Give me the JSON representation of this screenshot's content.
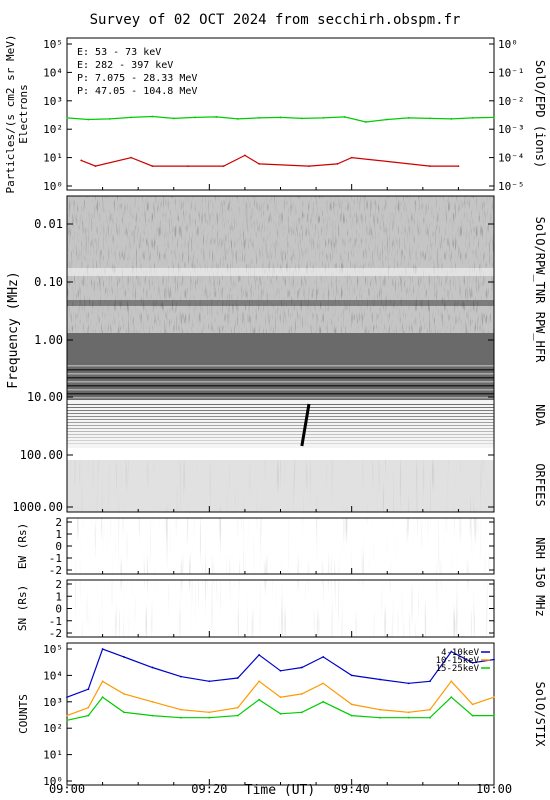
{
  "title": "Survey of 02 OCT 2024 from secchirh.obspm.fr",
  "colors": {
    "green": "#00cc00",
    "red": "#cc0000",
    "black": "#000000",
    "blue": "#0000cc",
    "orange": "#ff9900"
  },
  "epd": {
    "ylabel": "Particles/(s cm2 sr MeV)",
    "ylabel2": "Electrons",
    "rlabel": "SolO/EPD (ions)",
    "legend": [
      {
        "text": "E: 53 - 73 keV",
        "color": "#00cc00"
      },
      {
        "text": "E: 282 - 397 keV",
        "color": "#cc0000"
      },
      {
        "text": "P: 7.075 - 28.33 MeV",
        "color": "#000000"
      },
      {
        "text": "P: 47.05 - 104.8 MeV",
        "color": "#0000cc"
      }
    ],
    "yticks_left": [
      "10⁵",
      "10⁴",
      "10³",
      "10²",
      "10¹",
      "10⁰"
    ],
    "yticks_right": [
      "10⁰",
      "10⁻¹",
      "10⁻²",
      "10⁻³",
      "10⁻⁴",
      "10⁻⁵"
    ]
  },
  "freq": {
    "ylabel": "Frequency (MHz)",
    "yticks": [
      "0.01",
      "0.10",
      "1.00",
      "10.00",
      "100.00",
      "1000.00"
    ],
    "rlabels": [
      "SolO/RPW_TNR",
      "RPW_HFR",
      "NDA",
      "ORFEES"
    ]
  },
  "nrh": {
    "ew_label": "EW (Rs)",
    "sn_label": "SN (Rs)",
    "rlabel": "NRH 150 MHz",
    "yticks": [
      "2",
      "1",
      "0",
      "-1",
      "-2"
    ]
  },
  "stix": {
    "ylabel": "COUNTS",
    "rlabel": "SolO/STIX",
    "yticks": [
      "10⁵",
      "10⁴",
      "10³",
      "10²",
      "10¹",
      "10⁰"
    ],
    "legend": [
      {
        "text": "4-10keV",
        "color": "#0000cc"
      },
      {
        "text": "10-15keV",
        "color": "#ff9900"
      },
      {
        "text": "15-25keV",
        "color": "#00cc00"
      }
    ]
  },
  "xaxis": {
    "label": "Time (UT)",
    "ticks": [
      "09:00",
      "09:20",
      "09:40",
      "10:00"
    ]
  },
  "chart_data": [
    {
      "type": "line",
      "title": "Survey of 02 OCT 2024 from secchirh.obspm.fr",
      "ylabel": "Particles/(s cm2 sr MeV)",
      "yscale": "log",
      "ylim": [
        1,
        100000
      ],
      "xlim": [
        "09:00",
        "10:00"
      ],
      "series": [
        {
          "name": "E: 53 - 73 keV",
          "x": [
            "09:00",
            "09:03",
            "09:06",
            "09:09",
            "09:12",
            "09:15",
            "09:18",
            "09:21",
            "09:24",
            "09:27",
            "09:30",
            "09:33",
            "09:36",
            "09:39",
            "09:42",
            "09:45",
            "09:48",
            "09:51",
            "09:54",
            "09:57",
            "10:00"
          ],
          "values": [
            250,
            220,
            230,
            260,
            280,
            240,
            260,
            270,
            230,
            250,
            260,
            240,
            250,
            270,
            180,
            220,
            250,
            240,
            230,
            250,
            260
          ]
        },
        {
          "name": "E: 282 - 397 keV",
          "x": [
            "09:02",
            "09:04",
            "09:09",
            "09:12",
            "09:17",
            "09:22",
            "09:25",
            "09:27",
            "09:34",
            "09:38",
            "09:40",
            "09:51",
            "09:55"
          ],
          "values": [
            8,
            5,
            10,
            5,
            5,
            5,
            12,
            6,
            5,
            6,
            10,
            5,
            5
          ]
        }
      ]
    },
    {
      "type": "line",
      "ylabel": "COUNTS",
      "yscale": "log",
      "ylim": [
        1,
        100000
      ],
      "xlim": [
        "09:00",
        "10:00"
      ],
      "series": [
        {
          "name": "4-10keV",
          "x": [
            "09:00",
            "09:03",
            "09:05",
            "09:08",
            "09:12",
            "09:16",
            "09:20",
            "09:24",
            "09:27",
            "09:30",
            "09:33",
            "09:36",
            "09:40",
            "09:44",
            "09:48",
            "09:51",
            "09:54",
            "09:57",
            "10:00"
          ],
          "values": [
            1500,
            3000,
            100000,
            50000,
            20000,
            9000,
            6000,
            8000,
            60000,
            15000,
            20000,
            50000,
            10000,
            7000,
            5000,
            6000,
            80000,
            30000,
            40000
          ]
        },
        {
          "name": "10-15keV",
          "x": [
            "09:00",
            "09:03",
            "09:05",
            "09:08",
            "09:12",
            "09:16",
            "09:20",
            "09:24",
            "09:27",
            "09:30",
            "09:33",
            "09:36",
            "09:40",
            "09:44",
            "09:48",
            "09:51",
            "09:54",
            "09:57",
            "10:00"
          ],
          "values": [
            300,
            600,
            6000,
            2000,
            1000,
            500,
            400,
            600,
            6000,
            1500,
            2000,
            5000,
            800,
            500,
            400,
            500,
            6000,
            800,
            1500
          ]
        },
        {
          "name": "15-25keV",
          "x": [
            "09:00",
            "09:03",
            "09:05",
            "09:08",
            "09:12",
            "09:16",
            "09:20",
            "09:24",
            "09:27",
            "09:30",
            "09:33",
            "09:36",
            "09:40",
            "09:44",
            "09:48",
            "09:51",
            "09:54",
            "09:57",
            "10:00"
          ],
          "values": [
            200,
            300,
            1500,
            400,
            300,
            250,
            250,
            300,
            1200,
            350,
            400,
            1000,
            300,
            250,
            250,
            250,
            1500,
            300,
            300
          ]
        }
      ]
    }
  ]
}
